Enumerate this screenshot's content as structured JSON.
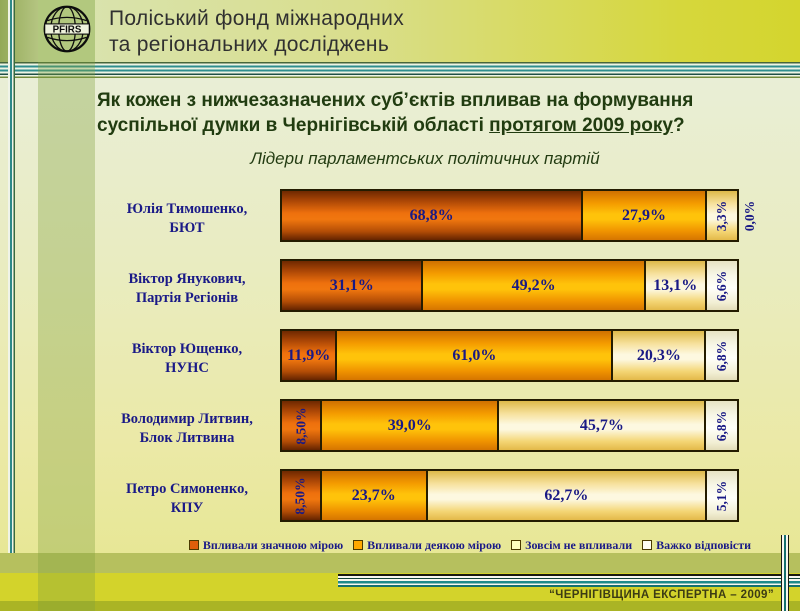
{
  "header": {
    "logo_text": "PFIRS",
    "org_line1": "Поліський фонд міжнародних",
    "org_line2": "та регіональних досліджень"
  },
  "title": {
    "line1": "Як кожен з нижчезазначених суб’єктів впливав на формування",
    "line2_pre": "суспільної думки в Чернігівській області ",
    "line2_underlined": "протягом 2009 року",
    "line2_post": "?"
  },
  "subtitle": "Лідери парламентських політичних партій",
  "chart_data": {
    "type": "bar",
    "orientation": "horizontal",
    "stacked": true,
    "unit": "%",
    "x_max": 100,
    "grid": false,
    "legend_position": "bottom",
    "title": "Лідери парламентських політичних партій",
    "categories": [
      "Юлія Тимошенко, БЮТ",
      "Віктор Янукович, Партія Регіонів",
      "Віктор Ющенко, НУНС",
      "Володимир Литвин, Блок Литвина",
      "Петро Симоненко, КПУ"
    ],
    "series": [
      {
        "name": "Впливали значною мірою",
        "color": "#e2660a",
        "values": [
          68.8,
          31.1,
          11.9,
          8.5,
          8.5
        ]
      },
      {
        "name": "Впливали деякою мірою",
        "color": "#ffaa00",
        "values": [
          27.9,
          49.2,
          61.0,
          39.0,
          23.7
        ]
      },
      {
        "name": "Зовсім не впливали",
        "color": "#fdf4c8",
        "values": [
          3.3,
          13.1,
          20.3,
          45.7,
          62.7
        ]
      },
      {
        "name": "Важко відповісти",
        "color": "#fbfaee",
        "values": [
          0.0,
          6.6,
          6.8,
          6.8,
          5.1
        ]
      }
    ],
    "rows": [
      {
        "label_lines": [
          "Юлія Тимошенко,",
          "БЮТ"
        ],
        "segments": [
          {
            "v": 68.8,
            "t": "68,8%",
            "o": "h"
          },
          {
            "v": 27.9,
            "t": "27,9%",
            "o": "h"
          },
          {
            "v": 3.3,
            "t": "3,3%",
            "o": "v"
          },
          {
            "v": 0.0,
            "t": "0,0%",
            "o": "out"
          }
        ]
      },
      {
        "label_lines": [
          "Віктор Янукович,",
          "Партія Регіонів"
        ],
        "segments": [
          {
            "v": 31.1,
            "t": "31,1%",
            "o": "h"
          },
          {
            "v": 49.2,
            "t": "49,2%",
            "o": "h"
          },
          {
            "v": 13.1,
            "t": "13,1%",
            "o": "h"
          },
          {
            "v": 6.6,
            "t": "6,6%",
            "o": "v"
          }
        ]
      },
      {
        "label_lines": [
          "Віктор Ющенко,",
          "НУНС"
        ],
        "segments": [
          {
            "v": 11.9,
            "t": "11,9%",
            "o": "h"
          },
          {
            "v": 61.0,
            "t": "61,0%",
            "o": "h"
          },
          {
            "v": 20.3,
            "t": "20,3%",
            "o": "h"
          },
          {
            "v": 6.8,
            "t": "6,8%",
            "o": "v"
          }
        ]
      },
      {
        "label_lines": [
          "Володимир Литвин,",
          "Блок Литвина"
        ],
        "segments": [
          {
            "v": 8.5,
            "t": "8,50%",
            "o": "v"
          },
          {
            "v": 39.0,
            "t": "39,0%",
            "o": "h"
          },
          {
            "v": 45.7,
            "t": "45,7%",
            "o": "h"
          },
          {
            "v": 6.8,
            "t": "6,8%",
            "o": "v"
          }
        ]
      },
      {
        "label_lines": [
          "Петро Симоненко,",
          "КПУ"
        ],
        "segments": [
          {
            "v": 8.5,
            "t": "8,50%",
            "o": "v"
          },
          {
            "v": 23.7,
            "t": "23,7%",
            "o": "h"
          },
          {
            "v": 62.7,
            "t": "62,7%",
            "o": "h"
          },
          {
            "v": 5.1,
            "t": "5,1%",
            "o": "v"
          }
        ]
      }
    ]
  },
  "legend": {
    "items": [
      {
        "label": "Впливали значною мірою",
        "color": "#dd5f0a"
      },
      {
        "label": "Впливали деякою мірою",
        "color": "#ffa900"
      },
      {
        "label": "Зовсім не впливали",
        "color": "#ffffbe"
      },
      {
        "label": "Важко відповісти",
        "color": "#fffef2"
      }
    ]
  },
  "footer": {
    "text": "“ЧЕРНІГІВЩИНА ЕКСПЕРТНА – 2009”"
  },
  "colors": {
    "value_label": "#1a1a87",
    "title_text": "#213c10",
    "footer_bg": "#d3d32b",
    "pinstripe_teal": "#1d8a8a"
  }
}
